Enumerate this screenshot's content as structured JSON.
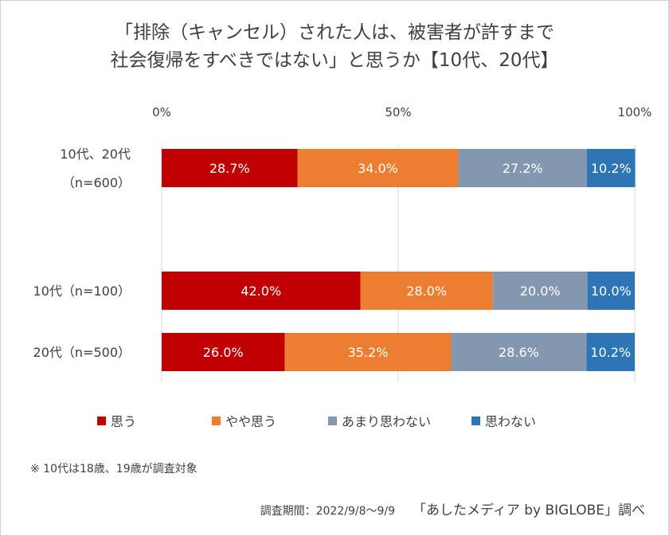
{
  "title_lines": [
    "「排除（キャンセル）された人は、被害者が許すまで",
    "社会復帰をすべきではない」と思うか【10代、20代】"
  ],
  "chart_data": {
    "type": "bar",
    "orientation": "horizontal",
    "stacked": "percent",
    "title": "「排除（キャンセル）された人は、被害者が許すまで社会復帰をすべきではない」と思うか【10代、20代】",
    "xlim": [
      0,
      100
    ],
    "x_ticks": [
      "0%",
      "50%",
      "100%"
    ],
    "grid": true,
    "legend_position": "bottom",
    "categories": [
      {
        "label_lines": [
          "10代、20代",
          "（n=600）"
        ]
      },
      {
        "label_lines": [
          "10代（n=100）"
        ]
      },
      {
        "label_lines": [
          "20代（n=500）"
        ]
      }
    ],
    "series": [
      {
        "name": "思う",
        "color": "#C00000",
        "values": [
          28.7,
          42.0,
          26.0
        ],
        "labels": [
          "28.7%",
          "42.0%",
          "26.0%"
        ]
      },
      {
        "name": "やや思う",
        "color": "#ED7D31",
        "values": [
          34.0,
          28.0,
          35.2
        ],
        "labels": [
          "34.0%",
          "28.0%",
          "35.2%"
        ]
      },
      {
        "name": "あまり思わない",
        "color": "#8497B0",
        "values": [
          27.2,
          20.0,
          28.6
        ],
        "labels": [
          "27.2%",
          "20.0%",
          "28.6%"
        ]
      },
      {
        "name": "思わない",
        "color": "#2E75B6",
        "values": [
          10.2,
          10.0,
          10.2
        ],
        "labels": [
          "10.2%",
          "10.0%",
          "10.2%"
        ]
      }
    ]
  },
  "footnote": "※ 10代は18歳、19歳が調査対象",
  "source": {
    "period": "調査期間：2022/9/8～9/9",
    "brand": "「あしたメディア by BIGLOBE」調べ"
  }
}
